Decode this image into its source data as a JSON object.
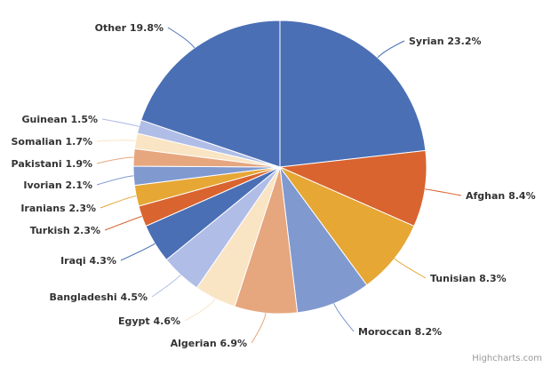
{
  "chart_data": {
    "type": "pie",
    "slices": [
      {
        "name": "Syrian",
        "value": 23.2,
        "label": "Syrian 23.2%",
        "color": "#4a6fb5"
      },
      {
        "name": "Afghan",
        "value": 8.4,
        "label": "Afghan 8.4%",
        "color": "#d9642f"
      },
      {
        "name": "Tunisian",
        "value": 8.3,
        "label": "Tunisian 8.3%",
        "color": "#e6a735"
      },
      {
        "name": "Moroccan",
        "value": 8.2,
        "label": "Moroccan 8.2%",
        "color": "#8099cf"
      },
      {
        "name": "Algerian",
        "value": 6.9,
        "label": "Algerian 6.9%",
        "color": "#e6a67e"
      },
      {
        "name": "Egypt",
        "value": 4.6,
        "label": "Egypt 4.6%",
        "color": "#f9e4c4"
      },
      {
        "name": "Bangladeshi",
        "value": 4.5,
        "label": "Bangladeshi 4.5%",
        "color": "#b0bde7"
      },
      {
        "name": "Iraqi",
        "value": 4.3,
        "label": "Iraqi 4.3%",
        "color": "#4a6fb5"
      },
      {
        "name": "Turkish",
        "value": 2.3,
        "label": "Turkish 2.3%",
        "color": "#d9642f"
      },
      {
        "name": "Iranians",
        "value": 2.3,
        "label": "Iranians 2.3%",
        "color": "#e6a735"
      },
      {
        "name": "Ivorian",
        "value": 2.1,
        "label": "Ivorian 2.1%",
        "color": "#8099cf"
      },
      {
        "name": "Pakistani",
        "value": 1.9,
        "label": "Pakistani 1.9%",
        "color": "#e6a67e"
      },
      {
        "name": "Somalian",
        "value": 1.7,
        "label": "Somalian 1.7%",
        "color": "#f9e4c4"
      },
      {
        "name": "Guinean",
        "value": 1.5,
        "label": "Guinean 1.5%",
        "color": "#b0bde7"
      },
      {
        "name": "Other",
        "value": 19.8,
        "label": "Other 19.8%",
        "color": "#4a6fb5"
      }
    ]
  },
  "credit": "Highcharts.com"
}
